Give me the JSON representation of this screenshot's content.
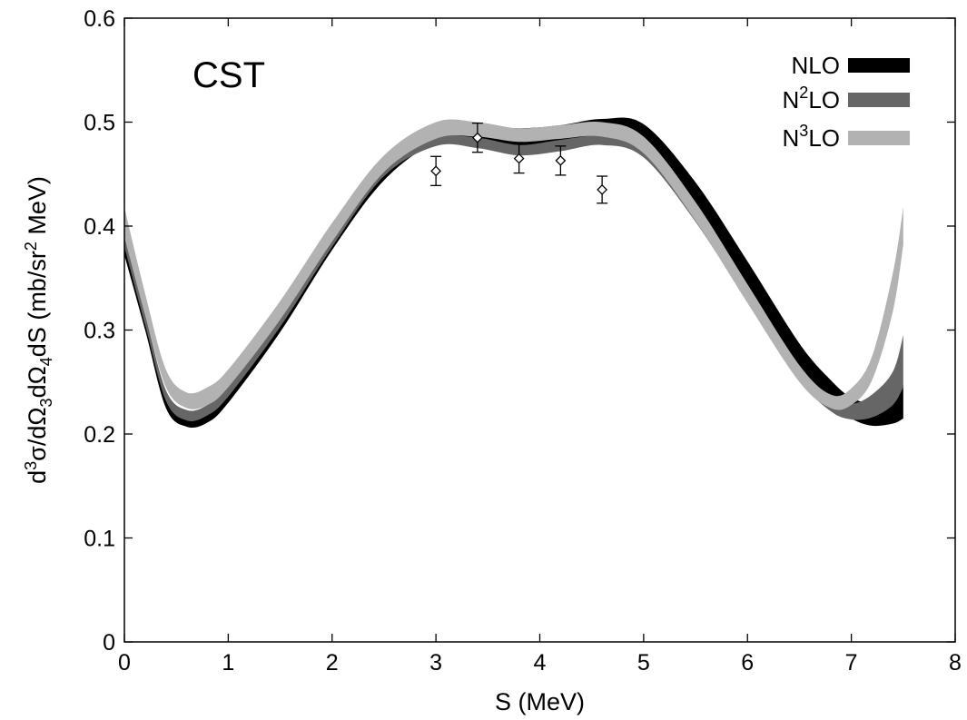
{
  "chart_data": {
    "type": "area",
    "panel_label": "CST",
    "xlabel": "S (MeV)",
    "ylabel_parts": {
      "a": "d",
      "a_sup": "3",
      "b": "σ/dΩ",
      "b_sub": "3",
      "c": "dΩ",
      "c_sub": "4",
      "d": "dS (mb/sr",
      "d_sup": "2",
      "e": " MeV)"
    },
    "xlim": [
      0,
      8
    ],
    "ylim": [
      0,
      0.6
    ],
    "x_ticks": [
      0,
      1,
      2,
      3,
      4,
      5,
      6,
      7,
      8
    ],
    "y_ticks": [
      0,
      0.1,
      0.2,
      0.3,
      0.4,
      0.5,
      0.6
    ],
    "x_tick_labels": [
      "0",
      "1",
      "2",
      "3",
      "4",
      "5",
      "6",
      "7",
      "8"
    ],
    "y_tick_labels": [
      "0",
      "0.1",
      "0.2",
      "0.3",
      "0.4",
      "0.5",
      "0.6"
    ],
    "grid": false,
    "legend_position": "top-right",
    "legend": [
      {
        "base": "NLO",
        "sup": "",
        "rest": ""
      },
      {
        "base": "N",
        "sup": "2",
        "rest": "LO"
      },
      {
        "base": "N",
        "sup": "3",
        "rest": "LO"
      }
    ],
    "series": [
      {
        "name": "NLO",
        "color": "#000000",
        "x": [
          0.0,
          0.2,
          0.4,
          0.6,
          0.8,
          1.0,
          1.5,
          2.0,
          2.5,
          3.0,
          3.4,
          3.8,
          4.2,
          4.6,
          5.0,
          5.5,
          6.0,
          6.5,
          6.8,
          7.0,
          7.2,
          7.4,
          7.5
        ],
        "lower": [
          0.372,
          0.3,
          0.225,
          0.207,
          0.211,
          0.23,
          0.298,
          0.377,
          0.444,
          0.48,
          0.478,
          0.475,
          0.478,
          0.486,
          0.478,
          0.418,
          0.342,
          0.264,
          0.232,
          0.215,
          0.208,
          0.21,
          0.215
        ],
        "upper": [
          0.385,
          0.31,
          0.237,
          0.219,
          0.224,
          0.243,
          0.31,
          0.388,
          0.455,
          0.495,
          0.497,
          0.494,
          0.497,
          0.503,
          0.498,
          0.442,
          0.366,
          0.287,
          0.252,
          0.235,
          0.23,
          0.238,
          0.247
        ]
      },
      {
        "name": "N2LO",
        "color": "#666666",
        "x": [
          0.0,
          0.2,
          0.4,
          0.6,
          0.8,
          1.0,
          1.5,
          2.0,
          2.5,
          3.0,
          3.4,
          3.8,
          4.2,
          4.6,
          5.0,
          5.5,
          6.0,
          6.5,
          6.8,
          7.0,
          7.2,
          7.4,
          7.5
        ],
        "lower": [
          0.38,
          0.305,
          0.232,
          0.213,
          0.218,
          0.236,
          0.303,
          0.38,
          0.448,
          0.477,
          0.475,
          0.468,
          0.472,
          0.478,
          0.466,
          0.404,
          0.327,
          0.252,
          0.222,
          0.214,
          0.216,
          0.228,
          0.245
        ],
        "upper": [
          0.39,
          0.315,
          0.242,
          0.223,
          0.228,
          0.246,
          0.313,
          0.391,
          0.458,
          0.485,
          0.485,
          0.478,
          0.483,
          0.487,
          0.478,
          0.42,
          0.342,
          0.266,
          0.236,
          0.229,
          0.238,
          0.26,
          0.295
        ]
      },
      {
        "name": "N3LO",
        "color": "#b2b2b2",
        "x": [
          0.0,
          0.2,
          0.4,
          0.6,
          0.8,
          1.0,
          1.5,
          2.0,
          2.5,
          3.0,
          3.4,
          3.8,
          4.2,
          4.6,
          5.0,
          5.5,
          6.0,
          6.5,
          6.8,
          7.0,
          7.2,
          7.4,
          7.5
        ],
        "lower": [
          0.39,
          0.315,
          0.245,
          0.225,
          0.228,
          0.245,
          0.31,
          0.385,
          0.452,
          0.484,
          0.486,
          0.481,
          0.484,
          0.486,
          0.47,
          0.405,
          0.326,
          0.25,
          0.225,
          0.228,
          0.252,
          0.318,
          0.382
        ],
        "upper": [
          0.418,
          0.335,
          0.262,
          0.24,
          0.245,
          0.262,
          0.328,
          0.403,
          0.468,
          0.5,
          0.5,
          0.494,
          0.497,
          0.5,
          0.486,
          0.423,
          0.344,
          0.266,
          0.238,
          0.244,
          0.275,
          0.355,
          0.418
        ]
      }
    ],
    "data_points": {
      "x": [
        3.0,
        3.4,
        3.8,
        4.2,
        4.6
      ],
      "y": [
        0.453,
        0.485,
        0.465,
        0.463,
        0.435
      ],
      "yerr": [
        0.014,
        0.014,
        0.014,
        0.014,
        0.013
      ]
    }
  }
}
